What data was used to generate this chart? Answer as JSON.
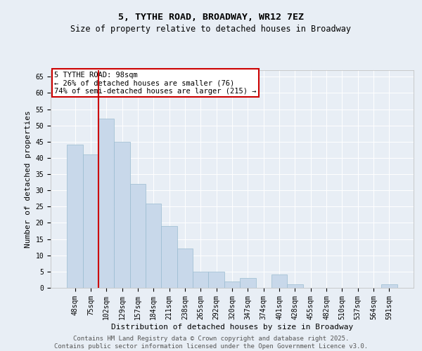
{
  "title": "5, TYTHE ROAD, BROADWAY, WR12 7EZ",
  "subtitle": "Size of property relative to detached houses in Broadway",
  "xlabel": "Distribution of detached houses by size in Broadway",
  "ylabel": "Number of detached properties",
  "bar_color": "#c8d8ea",
  "bar_edge_color": "#9abcd0",
  "background_color": "#e8eef5",
  "grid_color": "#ffffff",
  "categories": [
    "48sqm",
    "75sqm",
    "102sqm",
    "129sqm",
    "157sqm",
    "184sqm",
    "211sqm",
    "238sqm",
    "265sqm",
    "292sqm",
    "320sqm",
    "347sqm",
    "374sqm",
    "401sqm",
    "428sqm",
    "455sqm",
    "482sqm",
    "510sqm",
    "537sqm",
    "564sqm",
    "591sqm"
  ],
  "values": [
    44,
    41,
    52,
    45,
    32,
    26,
    19,
    12,
    5,
    5,
    2,
    3,
    0,
    4,
    1,
    0,
    0,
    0,
    0,
    0,
    1
  ],
  "ylim": [
    0,
    67
  ],
  "yticks": [
    0,
    5,
    10,
    15,
    20,
    25,
    30,
    35,
    40,
    45,
    50,
    55,
    60,
    65
  ],
  "vline_color": "#cc0000",
  "vline_position": 1.5,
  "annotation_text": "5 TYTHE ROAD: 98sqm\n← 26% of detached houses are smaller (76)\n74% of semi-detached houses are larger (215) →",
  "annotation_box_color": "#ffffff",
  "annotation_box_edge": "#cc0000",
  "footer_text": "Contains HM Land Registry data © Crown copyright and database right 2025.\nContains public sector information licensed under the Open Government Licence v3.0.",
  "title_fontsize": 9.5,
  "subtitle_fontsize": 8.5,
  "axis_label_fontsize": 8,
  "tick_fontsize": 7,
  "annotation_fontsize": 7.5,
  "footer_fontsize": 6.5
}
